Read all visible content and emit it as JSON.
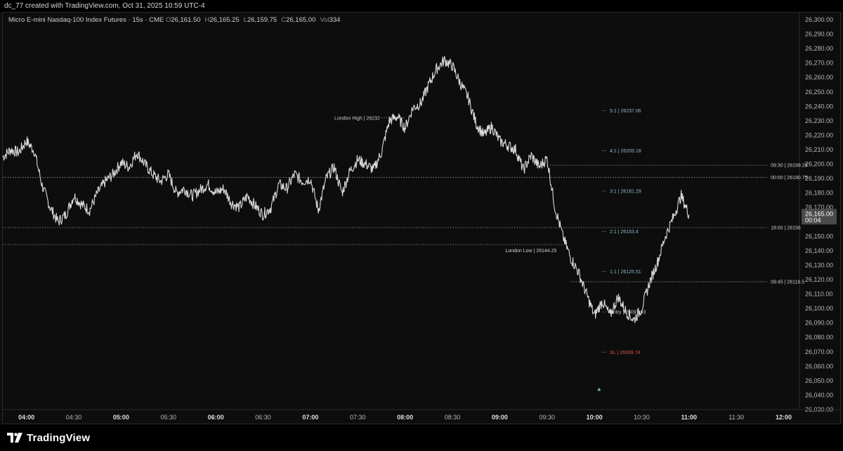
{
  "header": {
    "credit": "dc_77 created with TradingView.com, Oct 31, 2025 10:59 UTC-4"
  },
  "legend": {
    "symbol": "Micro E-mini Nasdaq-100 Index Futures · 15s · CME",
    "o_label": "O",
    "o": "26,161.50",
    "h_label": "H",
    "h": "26,165.25",
    "l_label": "L",
    "l": "26,159.75",
    "c_label": "C",
    "c": "26,165.00",
    "vol_label": "Vol",
    "vol": "334"
  },
  "price_tag": {
    "price": "26,165.00",
    "countdown": "00:04"
  },
  "footer": {
    "brand": "TradingView"
  },
  "colors": {
    "background": "#0d0d0d",
    "candles": "#d9d9d9",
    "guide": "#9a9a9a",
    "target_text": "#8fb8c9",
    "stop_text": "#d9534f",
    "tag_bg": "#4a4a4a"
  },
  "icons": {
    "logo": "tradingview-logo-icon",
    "entry_marker": "triangle-up-icon"
  },
  "chart_data": {
    "type": "line",
    "title": "",
    "y_axis": {
      "min": 26030,
      "max": 26300,
      "step": 10,
      "side": "right",
      "labels_format": "thousands-comma-2dp"
    },
    "x_axis": {
      "start_time": "03:45",
      "end_time": "12:10",
      "ticks": [
        {
          "time": "04:00",
          "label": "04:00",
          "bold": true
        },
        {
          "time": "04:30",
          "label": "04:30",
          "bold": false
        },
        {
          "time": "05:00",
          "label": "05:00",
          "bold": true
        },
        {
          "time": "05:30",
          "label": "05:30",
          "bold": false
        },
        {
          "time": "06:00",
          "label": "06:00",
          "bold": true
        },
        {
          "time": "06:30",
          "label": "06:30",
          "bold": false
        },
        {
          "time": "07:00",
          "label": "07:00",
          "bold": true
        },
        {
          "time": "07:30",
          "label": "07:30",
          "bold": false
        },
        {
          "time": "08:00",
          "label": "08:00",
          "bold": true
        },
        {
          "time": "08:30",
          "label": "08:30",
          "bold": false
        },
        {
          "time": "09:00",
          "label": "09:00",
          "bold": true
        },
        {
          "time": "09:30",
          "label": "09:30",
          "bold": false
        },
        {
          "time": "10:00",
          "label": "10:00",
          "bold": true
        },
        {
          "time": "10:30",
          "label": "10:30",
          "bold": false
        },
        {
          "time": "11:00",
          "label": "11:00",
          "bold": true
        },
        {
          "time": "11:30",
          "label": "11:30",
          "bold": false
        },
        {
          "time": "12:00",
          "label": "12:00",
          "bold": true
        }
      ]
    },
    "grid": false,
    "series": [
      {
        "wiggle": 4,
        "points": [
          [
            "03:45",
            26205
          ],
          [
            "03:50",
            26210
          ],
          [
            "03:55",
            26208
          ],
          [
            "04:00",
            26216
          ],
          [
            "04:05",
            26209
          ],
          [
            "04:10",
            26185
          ],
          [
            "04:15",
            26170
          ],
          [
            "04:20",
            26160
          ],
          [
            "04:25",
            26165
          ],
          [
            "04:30",
            26178
          ],
          [
            "04:35",
            26172
          ],
          [
            "04:40",
            26168
          ],
          [
            "04:45",
            26180
          ],
          [
            "04:50",
            26188
          ],
          [
            "04:55",
            26193
          ],
          [
            "05:00",
            26201
          ],
          [
            "05:05",
            26198
          ],
          [
            "05:10",
            26208
          ],
          [
            "05:15",
            26200
          ],
          [
            "05:20",
            26193
          ],
          [
            "05:25",
            26188
          ],
          [
            "05:30",
            26193
          ],
          [
            "05:35",
            26180
          ],
          [
            "05:40",
            26183
          ],
          [
            "05:45",
            26178
          ],
          [
            "05:50",
            26182
          ],
          [
            "05:55",
            26186
          ],
          [
            "06:00",
            26180
          ],
          [
            "06:05",
            26183
          ],
          [
            "06:10",
            26173
          ],
          [
            "06:15",
            26170
          ],
          [
            "06:20",
            26178
          ],
          [
            "06:25",
            26171
          ],
          [
            "06:30",
            26165
          ],
          [
            "06:35",
            26170
          ],
          [
            "06:40",
            26186
          ],
          [
            "06:45",
            26183
          ],
          [
            "06:50",
            26193
          ],
          [
            "06:55",
            26188
          ],
          [
            "07:00",
            26190
          ],
          [
            "07:05",
            26168
          ],
          [
            "07:10",
            26190
          ],
          [
            "07:15",
            26198
          ],
          [
            "07:20",
            26180
          ],
          [
            "07:25",
            26195
          ],
          [
            "07:30",
            26203
          ],
          [
            "07:35",
            26200
          ],
          [
            "07:40",
            26196
          ],
          [
            "07:45",
            26208
          ],
          [
            "07:50",
            26230
          ],
          [
            "07:55",
            26233
          ],
          [
            "08:00",
            26225
          ],
          [
            "08:05",
            26239
          ],
          [
            "08:10",
            26242
          ],
          [
            "08:15",
            26255
          ],
          [
            "08:20",
            26266
          ],
          [
            "08:25",
            26272
          ],
          [
            "08:30",
            26268
          ],
          [
            "08:35",
            26256
          ],
          [
            "08:40",
            26246
          ],
          [
            "08:45",
            26228
          ],
          [
            "08:50",
            26220
          ],
          [
            "08:55",
            26226
          ],
          [
            "09:00",
            26216
          ],
          [
            "09:05",
            26213
          ],
          [
            "09:10",
            26210
          ],
          [
            "09:15",
            26196
          ],
          [
            "09:20",
            26206
          ],
          [
            "09:25",
            26198
          ],
          [
            "09:30",
            26204
          ],
          [
            "09:35",
            26170
          ],
          [
            "09:40",
            26150
          ],
          [
            "09:45",
            26135
          ],
          [
            "09:50",
            26125
          ],
          [
            "09:55",
            26110
          ],
          [
            "10:00",
            26095
          ],
          [
            "10:05",
            26105
          ],
          [
            "10:10",
            26095
          ],
          [
            "10:15",
            26108
          ],
          [
            "10:20",
            26098
          ],
          [
            "10:25",
            26092
          ],
          [
            "10:30",
            26100
          ],
          [
            "10:35",
            26118
          ],
          [
            "10:40",
            26132
          ],
          [
            "10:45",
            26150
          ],
          [
            "10:50",
            26163
          ],
          [
            "10:55",
            26178
          ],
          [
            "11:00",
            26165
          ]
        ]
      }
    ],
    "levels": [
      {
        "label": "London High | 26232",
        "price": 26232,
        "from": "07:45",
        "to": "08:00",
        "style": "dotted",
        "text_color": "#cfcfcf",
        "label_at": "07:45",
        "anchor": "end"
      },
      {
        "label": "London Low | 26144.25",
        "price": 26144.25,
        "from": "03:45",
        "to": "09:40",
        "style": "dotted",
        "text_color": "#cfcfcf",
        "label_at": "09:37",
        "anchor": "end",
        "label_above": true
      },
      {
        "label": "5:1 | 26237.06",
        "price": 26237.06,
        "from": "10:05",
        "to": "10:08",
        "style": "dotted",
        "text_color": "#8fb8c9",
        "label_at": "10:08",
        "anchor": "start"
      },
      {
        "label": "4:1 | 26209.18",
        "price": 26209.18,
        "from": "10:05",
        "to": "10:08",
        "style": "dotted",
        "text_color": "#8fb8c9",
        "label_at": "10:08",
        "anchor": "start"
      },
      {
        "label": "3:1 | 26181.29",
        "price": 26181.29,
        "from": "10:05",
        "to": "10:08",
        "style": "dotted",
        "text_color": "#8fb8c9",
        "label_at": "10:08",
        "anchor": "start"
      },
      {
        "label": "2:1 | 26153.4",
        "price": 26153.4,
        "from": "10:05",
        "to": "10:08",
        "style": "dotted",
        "text_color": "#8fb8c9",
        "label_at": "10:08",
        "anchor": "start"
      },
      {
        "label": "1:1 | 26125.51",
        "price": 26125.51,
        "from": "10:05",
        "to": "10:08",
        "style": "dotted",
        "text_color": "#8fb8c9",
        "label_at": "10:08",
        "anchor": "start"
      },
      {
        "label": "Entry | 26097.63",
        "price": 26097.63,
        "from": "10:05",
        "to": "10:08",
        "style": "dotted",
        "text_color": "#d0d0d0",
        "label_at": "10:08",
        "anchor": "start"
      },
      {
        "label": "SL | 26069.74",
        "price": 26069.74,
        "from": "10:05",
        "to": "10:08",
        "style": "dotted",
        "text_color": "#d9534f",
        "label_at": "10:08",
        "anchor": "start"
      },
      {
        "label": "09:30 | 26199.25",
        "price": 26199.25,
        "from": "09:30",
        "to": "11:50",
        "style": "dotted",
        "text_color": "#cfcfcf",
        "label_at": "11:50",
        "anchor": "start"
      },
      {
        "label": "00:00 | 26190.75",
        "price": 26190.75,
        "from": "03:45",
        "to": "11:50",
        "style": "dotted",
        "text_color": "#cfcfcf",
        "label_at": "11:50",
        "anchor": "start"
      },
      {
        "label": "18:00 | 26156",
        "price": 26156,
        "from": "03:45",
        "to": "11:50",
        "style": "dotted",
        "text_color": "#cfcfcf",
        "label_at": "11:50",
        "anchor": "start"
      },
      {
        "label": "09:45 | 26118.5",
        "price": 26118.5,
        "from": "09:45",
        "to": "11:50",
        "style": "dotted",
        "text_color": "#cfcfcf",
        "label_at": "11:50",
        "anchor": "start"
      }
    ],
    "markers": [
      {
        "name": "entry-marker",
        "time": "10:03",
        "price": 26044,
        "shape": "triangle-up",
        "color": "#7fb3c7"
      }
    ],
    "last_price": 26165.0
  }
}
